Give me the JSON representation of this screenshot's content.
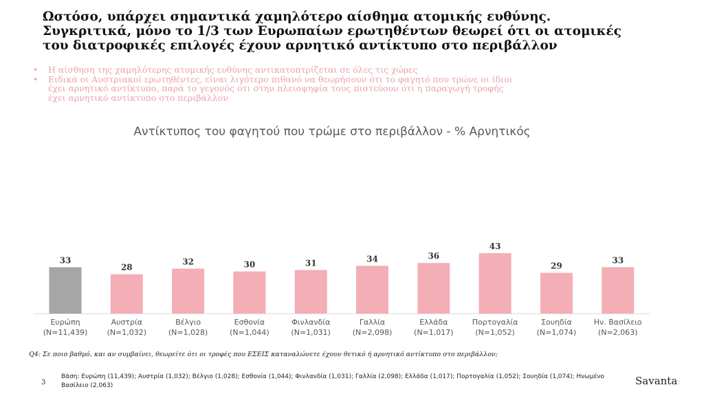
{
  "title_lines": [
    "Ωστόσο, υπάρχει σημαντικά χαμηλότερο αίσθημα ατομικής ευθύνης.",
    "Συγκριτικά, μόνο το 1/3 των Ευρωπαίων ερωτηθέντων θεωρεί ότι οι ατομικές",
    "του διατροφικές επιλογές έχουν αρνητικό αντίκτυπο στο περιβάλλον"
  ],
  "bullets": [
    {
      "marker": "•",
      "lines": [
        "Η αίσθηση της χαμηλότερης ατομικής ευθύνης αντικατοπτρίζεται σε όλες τις χώρες"
      ]
    },
    {
      "marker": "•",
      "lines": [
        "Ειδικά οι Αυστριακοί ερωτηθέντες, είναι λιγότερο πιθανό να θεωρήσουν ότι το φαγητό που τρώνε οι ίδιοι",
        "έχει αρνητικό αντίκτυπο, παρά το γεγονός ότι στην πλειοψηφία τους πιστεύουν ότι η παραγωγή τροφής",
        "έχει αρνητικό αντίκτυπο στο περιβάλλον"
      ]
    }
  ],
  "colors": {
    "highlight_bar": "#a6a6a6",
    "bar": "#f4aeb5",
    "accent_text": "#e8a2ab"
  },
  "chart_data": {
    "type": "bar",
    "title": "Αντίκτυπος του φαγητού που τρώμε στο περιβάλλον - % Αρνητικός",
    "categories": [
      "Ευρώπη",
      "Αυστρία",
      "Βέλγιο",
      "Εσθονία",
      "Φινλανδία",
      "Γαλλία",
      "Ελλάδα",
      "Πορτογαλία",
      "Σουηδία",
      "Ην. Βασίλειο"
    ],
    "sample_sizes": [
      "(N=11,439)",
      "(N=1,032)",
      "(N=1,028)",
      "(N=1,044)",
      "(N=1,031)",
      "(N=2,098)",
      "(N=1,017)",
      "(N=1,052)",
      "(N=1,074)",
      "(N=2,063)"
    ],
    "values": [
      33,
      28,
      32,
      30,
      31,
      34,
      36,
      43,
      29,
      33
    ],
    "highlight_index": 0,
    "grid": false,
    "legend": "none"
  },
  "question": "Q4: Σε ποιο βαθμό, και αν συμβαίνει, θεωρείτε ότι οι τροφές που ΕΣΕΙΣ καταναλώνετε έχουν θετικό ή αρνητικό αντίκτυπο στο περιβάλλον;",
  "page_number": "3",
  "base_note": "Βάση: Ευρώπη (11,439); Αυστρία (1,032); Βέλγιο (1,028); Εσθονία (1,044); Φινλανδία (1,031); Γαλλία (2,098); Ελλάδα (1,017); Πορτογαλία (1,052); Σουηδία (1,074); Ηνωμένο Βασίλειο (2,063)",
  "logo": {
    "text": "Savanta",
    "mark": ":"
  }
}
